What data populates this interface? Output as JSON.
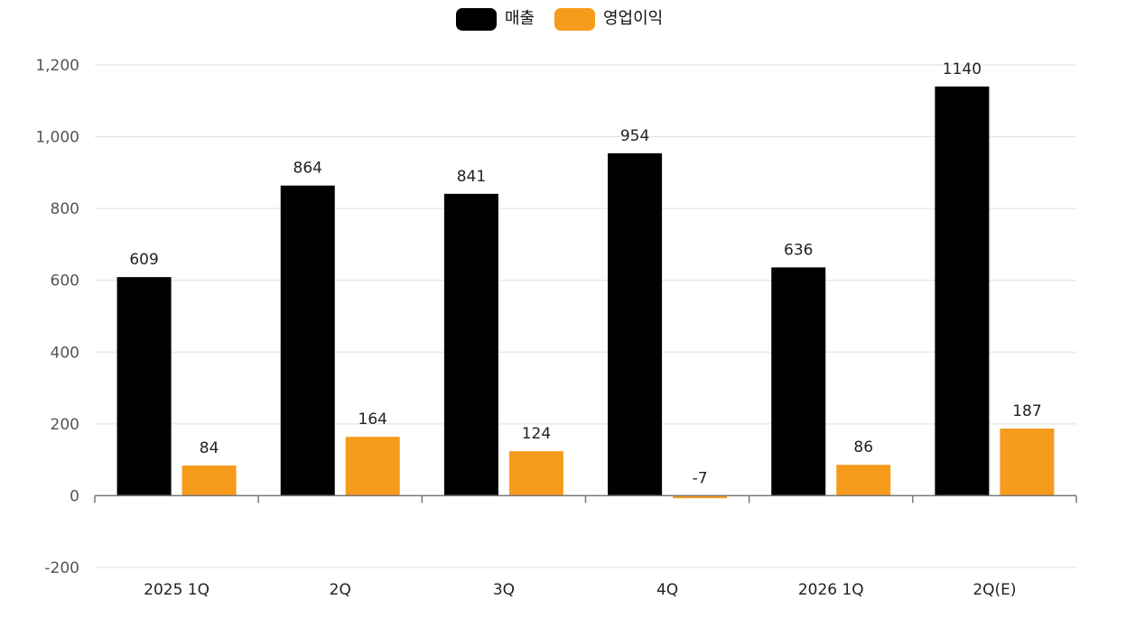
{
  "chart_data": {
    "type": "bar",
    "categories": [
      "2025 1Q",
      "2Q",
      "3Q",
      "4Q",
      "2026 1Q",
      "2Q(E)"
    ],
    "series": [
      {
        "name": "매출",
        "color": "#000000",
        "values": [
          609,
          864,
          841,
          954,
          636,
          1140
        ]
      },
      {
        "name": "영업이익",
        "color": "#F79B1C",
        "values": [
          84,
          164,
          124,
          -7,
          86,
          187
        ]
      }
    ],
    "data_labels": [
      [
        "609",
        "864",
        "841",
        "954",
        "636",
        "1140"
      ],
      [
        "84",
        "164",
        "124",
        "-7",
        "86",
        "187"
      ]
    ],
    "y_ticks": [
      {
        "value": -200,
        "label": "-200"
      },
      {
        "value": 0,
        "label": "0"
      },
      {
        "value": 200,
        "label": "200"
      },
      {
        "value": 400,
        "label": "400"
      },
      {
        "value": 600,
        "label": "600"
      },
      {
        "value": 800,
        "label": "800"
      },
      {
        "value": 1000,
        "label": "1,000"
      },
      {
        "value": 1200,
        "label": "1,200"
      }
    ],
    "ylim": [
      -200,
      1200
    ],
    "grid": true,
    "legend_position": "top-center",
    "title": "",
    "xlabel": "",
    "ylabel": ""
  }
}
